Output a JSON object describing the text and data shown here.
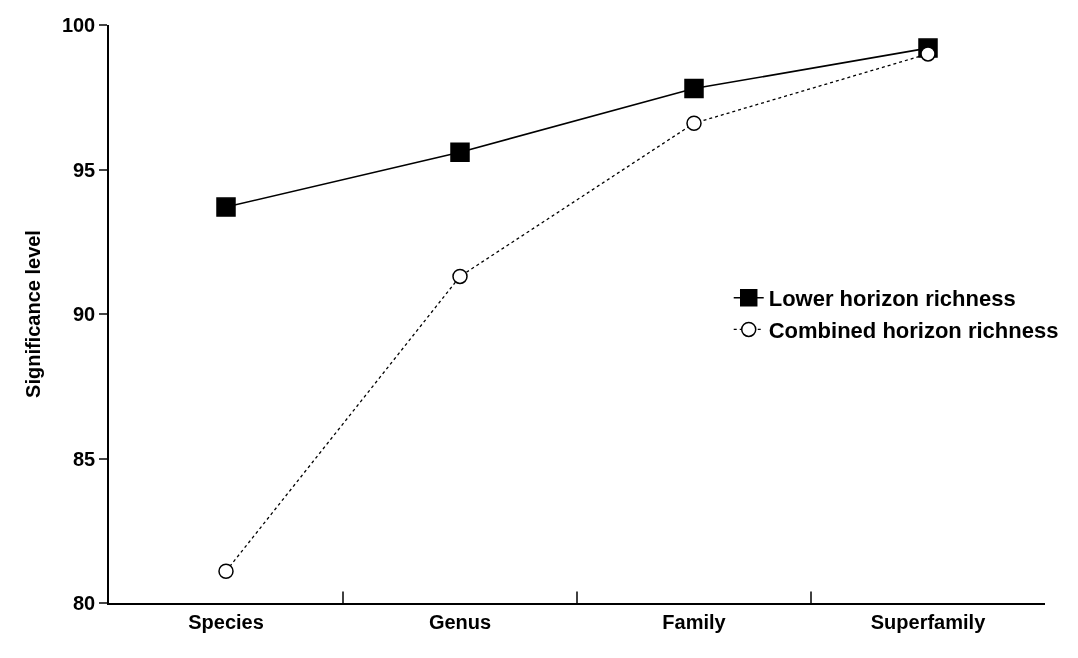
{
  "chart_data": {
    "type": "line",
    "ylabel": "Significance level",
    "categories": [
      "Species",
      "Genus",
      "Family",
      "Superfamily"
    ],
    "ylim": [
      80,
      100
    ],
    "yticks": [
      80,
      85,
      90,
      95,
      100
    ],
    "grid": false,
    "legend": "right",
    "series": [
      {
        "name": "Lower horizon richness",
        "color": "#000000",
        "marker": "square",
        "line_style": "solid",
        "values": [
          93.7,
          95.6,
          97.8,
          99.2
        ]
      },
      {
        "name": "Combined horizon richness",
        "color": "#000000",
        "marker": "circle",
        "line_style": "dotted",
        "values": [
          81.1,
          91.3,
          96.6,
          99.0
        ]
      }
    ]
  }
}
